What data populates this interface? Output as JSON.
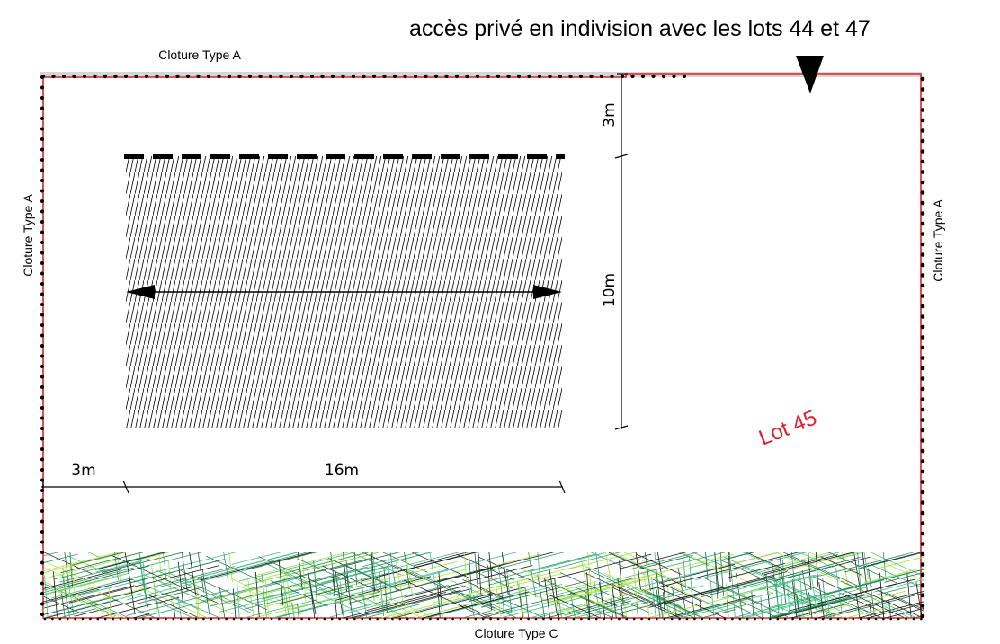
{
  "header": {
    "access_note": "accès privé en indivision avec les lots 44 et 47"
  },
  "fences": {
    "top": "Cloture Type A",
    "left": "Cloture Type A",
    "right": "Cloture Type A",
    "bottom": "Cloture Type C"
  },
  "lot": {
    "label": "Lot 45"
  },
  "dimensions": {
    "setback_top": "3m",
    "building_depth": "10m",
    "setback_left": "3m",
    "building_width": "16m"
  },
  "colors": {
    "lot_boundary": "#e0202a",
    "lot_label": "#e0202a",
    "vegetation_dark": "#1e6b3a",
    "vegetation_mid": "#2f9d6a",
    "vegetation_light": "#a7e03a"
  },
  "icons": {
    "access_marker": "triangle-down-icon",
    "width_arrow": "double-arrow-icon"
  }
}
